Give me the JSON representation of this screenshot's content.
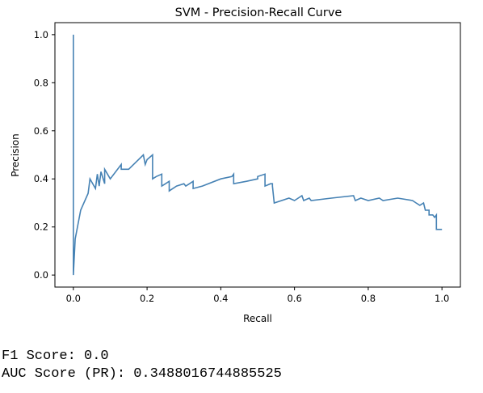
{
  "chart_data": {
    "type": "line",
    "title": "SVM - Precision-Recall Curve",
    "xlabel": "Recall",
    "ylabel": "Precision",
    "xlim": [
      -0.05,
      1.05
    ],
    "ylim": [
      -0.05,
      1.05
    ],
    "xticks": [
      "0.0",
      "0.2",
      "0.4",
      "0.6",
      "0.8",
      "1.0"
    ],
    "yticks": [
      "0.0",
      "0.2",
      "0.4",
      "0.6",
      "0.8",
      "1.0"
    ],
    "grid": false,
    "series": [
      {
        "color": "#4682b4",
        "x": [
          0.0,
          0.0,
          0.0,
          0.005,
          0.02,
          0.04,
          0.045,
          0.06,
          0.065,
          0.07,
          0.075,
          0.085,
          0.085,
          0.1,
          0.13,
          0.13,
          0.15,
          0.17,
          0.19,
          0.195,
          0.2,
          0.215,
          0.215,
          0.225,
          0.24,
          0.24,
          0.25,
          0.26,
          0.26,
          0.28,
          0.3,
          0.305,
          0.315,
          0.325,
          0.325,
          0.35,
          0.4,
          0.43,
          0.435,
          0.435,
          0.47,
          0.5,
          0.5,
          0.52,
          0.52,
          0.535,
          0.54,
          0.54,
          0.545,
          0.585,
          0.6,
          0.61,
          0.62,
          0.625,
          0.64,
          0.645,
          0.7,
          0.76,
          0.765,
          0.78,
          0.8,
          0.83,
          0.84,
          0.88,
          0.92,
          0.93,
          0.94,
          0.95,
          0.955,
          0.965,
          0.965,
          0.975,
          0.98,
          0.985,
          0.985,
          1.0
        ],
        "y": [
          1.0,
          0.0,
          0.0,
          0.15,
          0.27,
          0.34,
          0.4,
          0.36,
          0.42,
          0.37,
          0.43,
          0.38,
          0.44,
          0.4,
          0.46,
          0.44,
          0.44,
          0.47,
          0.5,
          0.46,
          0.48,
          0.5,
          0.4,
          0.41,
          0.42,
          0.37,
          0.38,
          0.39,
          0.35,
          0.37,
          0.38,
          0.37,
          0.38,
          0.39,
          0.36,
          0.37,
          0.4,
          0.41,
          0.42,
          0.38,
          0.39,
          0.4,
          0.41,
          0.42,
          0.37,
          0.38,
          0.38,
          0.37,
          0.3,
          0.32,
          0.31,
          0.32,
          0.33,
          0.31,
          0.32,
          0.31,
          0.32,
          0.33,
          0.31,
          0.32,
          0.31,
          0.32,
          0.31,
          0.32,
          0.31,
          0.3,
          0.29,
          0.3,
          0.27,
          0.27,
          0.25,
          0.25,
          0.24,
          0.25,
          0.19,
          0.19
        ]
      }
    ]
  },
  "output": {
    "line1": "F1 Score: 0.0",
    "line2": "AUC Score (PR): 0.3488016744885525"
  }
}
